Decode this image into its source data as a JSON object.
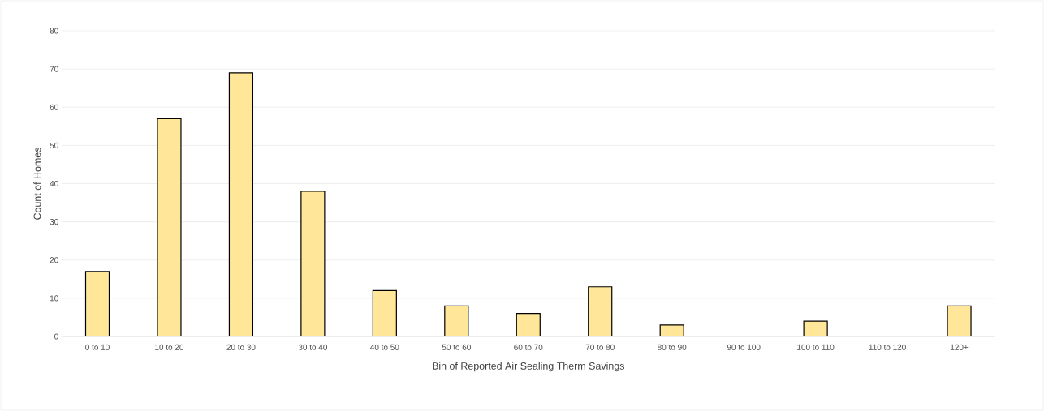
{
  "chart_data": {
    "type": "bar",
    "xlabel": "Bin of Reported Air Sealing Therm Savings",
    "ylabel": "Count of Homes",
    "categories": [
      "0 to 10",
      "10 to 20",
      "20 to 30",
      "30 to 40",
      "40 to 50",
      "50 to 60",
      "60 to 70",
      "70 to 80",
      "80 to 90",
      "90 to 100",
      "100 to 110",
      "110 to 120",
      "120+"
    ],
    "values": [
      17,
      57,
      69,
      38,
      12,
      8,
      6,
      13,
      3,
      0,
      4,
      0,
      8
    ],
    "color": "#ffe699",
    "ylim": [
      0,
      80
    ],
    "yticks": [
      0,
      10,
      20,
      30,
      40,
      50,
      60,
      70,
      80
    ],
    "grid": "y"
  }
}
